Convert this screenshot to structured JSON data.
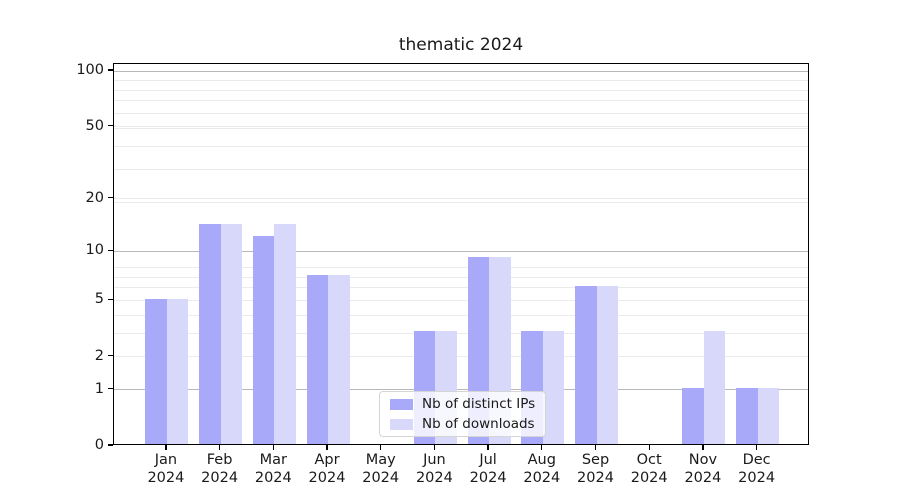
{
  "figure": {
    "title": "thematic 2024",
    "background_color": "#ffffff"
  },
  "chart_data": {
    "type": "bar",
    "title": "thematic 2024",
    "categories": [
      {
        "month": "Jan",
        "year": "2024"
      },
      {
        "month": "Feb",
        "year": "2024"
      },
      {
        "month": "Mar",
        "year": "2024"
      },
      {
        "month": "Apr",
        "year": "2024"
      },
      {
        "month": "May",
        "year": "2024"
      },
      {
        "month": "Jun",
        "year": "2024"
      },
      {
        "month": "Jul",
        "year": "2024"
      },
      {
        "month": "Aug",
        "year": "2024"
      },
      {
        "month": "Sep",
        "year": "2024"
      },
      {
        "month": "Oct",
        "year": "2024"
      },
      {
        "month": "Nov",
        "year": "2024"
      },
      {
        "month": "Dec",
        "year": "2024"
      }
    ],
    "series": [
      {
        "name": "Nb of distinct IPs",
        "color": "#a9a9fa",
        "values": [
          5,
          14,
          12,
          7,
          0,
          3,
          9,
          3,
          6,
          0,
          1,
          1
        ]
      },
      {
        "name": "Nb of downloads",
        "color": "#d8d8fa",
        "values": [
          5,
          14,
          14,
          7,
          0,
          3,
          9,
          3,
          6,
          0,
          3,
          1
        ]
      }
    ],
    "y_axis": {
      "scale": "log1p",
      "tick_values": [
        0,
        1,
        2,
        5,
        10,
        20,
        50,
        100
      ],
      "tick_labels": [
        "0",
        "1",
        "2",
        "5",
        "10",
        "20",
        "50",
        "100"
      ],
      "major_grid_values": [
        1,
        10,
        100
      ],
      "ylim": [
        0,
        110
      ]
    },
    "grid": true,
    "legend_position": "lower center",
    "colors": {
      "major_grid": "#b8b8b8",
      "minor_grid": "#ebebeb",
      "axis_line": "#000000",
      "text": "#1a1a1a",
      "legend_border": "#d5d5d5"
    }
  }
}
